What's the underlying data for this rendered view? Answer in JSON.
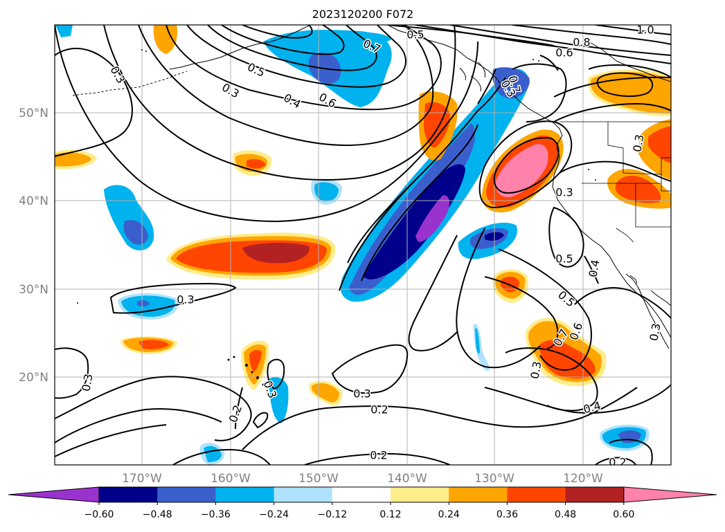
{
  "title": "2023120200 F072",
  "lat_labels": [
    "50°N",
    "40°N",
    "30°N",
    "20°N"
  ],
  "lon_labels": [
    "170°W",
    "160°W",
    "150°W",
    "140°W",
    "130°W",
    "120°W"
  ],
  "colorbar": {
    "colors": [
      "#9a32cd",
      "#00008b",
      "#3a5fcd",
      "#00b2ee",
      "#b0e2ff",
      "#ffffff",
      "#ffec8b",
      "#ffa500",
      "#ff4500",
      "#b22222",
      "#ff82ab"
    ],
    "tick_labels": [
      "−0.60",
      "−0.48",
      "−0.36",
      "−0.24",
      "−0.12",
      "0.12",
      "0.24",
      "0.36",
      "0.48",
      "0.60"
    ]
  },
  "contour_labels": [
    {
      "text": "0.3"
    },
    {
      "text": "0.3"
    },
    {
      "text": "0.5"
    },
    {
      "text": "0.4"
    },
    {
      "text": "0.6"
    },
    {
      "text": "0.7"
    },
    {
      "text": "0.5"
    },
    {
      "text": "0.7"
    },
    {
      "text": "0.8"
    },
    {
      "text": "0.6"
    },
    {
      "text": "1.0"
    },
    {
      "text": "0.3"
    },
    {
      "text": "0.3"
    },
    {
      "text": "0.3"
    },
    {
      "text": "0.5"
    },
    {
      "text": "0.4"
    },
    {
      "text": "0.5"
    },
    {
      "text": "0.6"
    },
    {
      "text": "0.7"
    },
    {
      "text": "0.3"
    },
    {
      "text": "0.3"
    },
    {
      "text": "0.3"
    },
    {
      "text": "0.2"
    },
    {
      "text": "0.3"
    },
    {
      "text": "0.2"
    },
    {
      "text": "0.2"
    },
    {
      "text": "0.4"
    },
    {
      "text": "0.2"
    },
    {
      "text": "0.3"
    },
    {
      "text": "0.3"
    }
  ]
}
